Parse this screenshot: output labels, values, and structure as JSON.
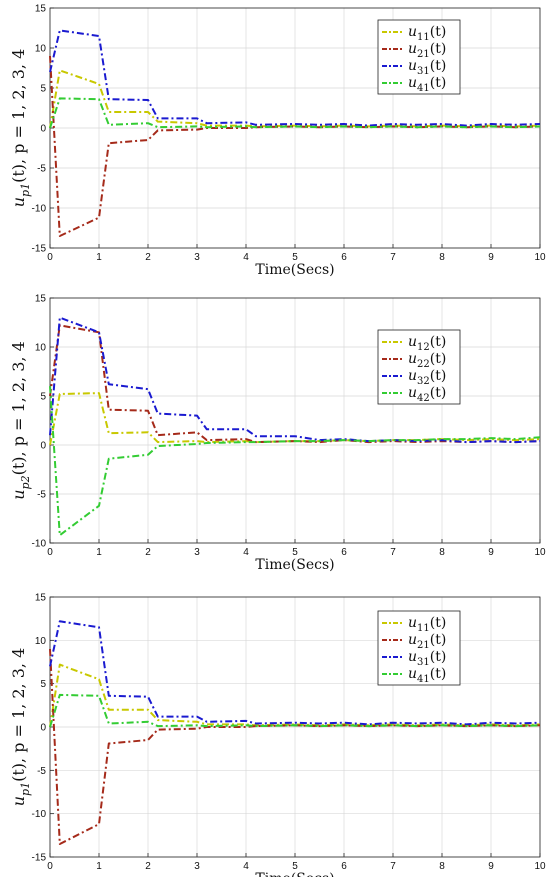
{
  "chart_data": [
    {
      "type": "line",
      "xlabel": "Time(Secs)",
      "ylabel": "u_{p1}(t), p = 1, 2, 3, 4",
      "xlim": [
        0,
        10
      ],
      "ylim": [
        -15,
        15
      ],
      "xticks": [
        "0",
        "1",
        "2",
        "3",
        "4",
        "5",
        "6",
        "7",
        "8",
        "9",
        "10"
      ],
      "yticks": [
        "-15",
        "-10",
        "-5",
        "0",
        "5",
        "10",
        "15"
      ],
      "grid": true,
      "legend_position": "top-right",
      "series": [
        {
          "name": "u11(t)",
          "label_main": "u",
          "label_sub": "11",
          "label_arg": "(t)",
          "color": "#c8c800",
          "x": [
            0,
            0.2,
            1,
            1.2,
            2,
            2.2,
            3,
            3.2,
            4,
            4.2,
            5,
            5.5,
            6,
            6.5,
            7,
            7.5,
            8,
            8.5,
            9,
            9.5,
            10
          ],
          "y": [
            0,
            7.2,
            5.5,
            2,
            2,
            0.8,
            0.6,
            0.3,
            0.3,
            0.2,
            0.3,
            0.2,
            0.3,
            0.2,
            0.3,
            0.2,
            0.3,
            0.2,
            0.3,
            0.2,
            0.3
          ]
        },
        {
          "name": "u21(t)",
          "label_main": "u",
          "label_sub": "21",
          "label_arg": "(t)",
          "color": "#a52a1a",
          "x": [
            0,
            0.2,
            1,
            1.2,
            2,
            2.2,
            3,
            3.2,
            4,
            4.2,
            5,
            5.5,
            6,
            6.5,
            7,
            7.5,
            8,
            8.5,
            9,
            9.5,
            10
          ],
          "y": [
            9,
            -13.5,
            -11.2,
            -1.9,
            -1.5,
            -0.3,
            -0.2,
            0,
            0,
            0.1,
            0.2,
            0.1,
            0.2,
            0.1,
            0.2,
            0.1,
            0.2,
            0.1,
            0.2,
            0.1,
            0.2
          ]
        },
        {
          "name": "u31(t)",
          "label_main": "u",
          "label_sub": "31",
          "label_arg": "(t)",
          "color": "#1a1ad0",
          "x": [
            0,
            0.2,
            1,
            1.2,
            2,
            2.2,
            3,
            3.2,
            4,
            4.2,
            5,
            5.5,
            6,
            6.5,
            7,
            7.5,
            8,
            8.5,
            9,
            9.5,
            10
          ],
          "y": [
            7,
            12.2,
            11.5,
            3.6,
            3.5,
            1.2,
            1.2,
            0.6,
            0.7,
            0.4,
            0.5,
            0.4,
            0.5,
            0.3,
            0.5,
            0.4,
            0.5,
            0.3,
            0.5,
            0.4,
            0.5
          ]
        },
        {
          "name": "u41(t)",
          "label_main": "u",
          "label_sub": "41",
          "label_arg": "(t)",
          "color": "#33cc33",
          "x": [
            0,
            0.2,
            1,
            1.2,
            2,
            2.2,
            3,
            3.2,
            4,
            4.2,
            5,
            5.5,
            6,
            6.5,
            7,
            7.5,
            8,
            8.5,
            9,
            9.5,
            10
          ],
          "y": [
            0,
            3.7,
            3.6,
            0.4,
            0.6,
            0.1,
            0.2,
            0.1,
            0.2,
            0.1,
            0.2,
            0.1,
            0.2,
            0.1,
            0.2,
            0.1,
            0.2,
            0.1,
            0.2,
            0.1,
            0.2
          ]
        }
      ]
    },
    {
      "type": "line",
      "xlabel": "Time(Secs)",
      "ylabel": "u_{p2}(t), p = 1, 2, 3, 4",
      "xlim": [
        0,
        10
      ],
      "ylim": [
        -10,
        15
      ],
      "xticks": [
        "0",
        "1",
        "2",
        "3",
        "4",
        "5",
        "6",
        "7",
        "8",
        "9",
        "10"
      ],
      "yticks": [
        "-10",
        "-5",
        "0",
        "5",
        "10",
        "15"
      ],
      "grid": true,
      "legend_position": "right",
      "series": [
        {
          "name": "u12(t)",
          "label_main": "u",
          "label_sub": "12",
          "label_arg": "(t)",
          "color": "#c8c800",
          "x": [
            0,
            0.2,
            1,
            1.2,
            2,
            2.2,
            3,
            3.2,
            4,
            4.2,
            5,
            5.5,
            6,
            6.5,
            7,
            7.5,
            8,
            8.5,
            9,
            9.5,
            10
          ],
          "y": [
            0,
            5.2,
            5.3,
            1.2,
            1.3,
            0.3,
            0.4,
            0.3,
            0.4,
            0.3,
            0.4,
            0.4,
            0.5,
            0.4,
            0.5,
            0.5,
            0.6,
            0.5,
            0.6,
            0.5,
            0.6
          ]
        },
        {
          "name": "u22(t)",
          "label_main": "u",
          "label_sub": "22",
          "label_arg": "(t)",
          "color": "#a52a1a",
          "x": [
            0,
            0.2,
            1,
            1.2,
            2,
            2.2,
            3,
            3.2,
            4,
            4.2,
            5,
            5.5,
            6,
            6.5,
            7,
            7.5,
            8,
            8.5,
            9,
            9.5,
            10
          ],
          "y": [
            5,
            12.2,
            11.5,
            3.6,
            3.5,
            1,
            1.3,
            0.5,
            0.6,
            0.3,
            0.4,
            0.3,
            0.5,
            0.3,
            0.4,
            0.3,
            0.4,
            0.3,
            0.4,
            0.3,
            0.4
          ]
        },
        {
          "name": "u32(t)",
          "label_main": "u",
          "label_sub": "32",
          "label_arg": "(t)",
          "color": "#1a1ad0",
          "x": [
            0,
            0.2,
            1,
            1.2,
            2,
            2.2,
            3,
            3.2,
            4,
            4.2,
            5,
            5.5,
            6,
            6.5,
            7,
            7.5,
            8,
            8.5,
            9,
            9.5,
            10
          ],
          "y": [
            1,
            13,
            11.5,
            6.2,
            5.7,
            3.2,
            3,
            1.6,
            1.6,
            0.9,
            0.9,
            0.5,
            0.6,
            0.4,
            0.5,
            0.4,
            0.5,
            0.3,
            0.4,
            0.3,
            0.4
          ]
        },
        {
          "name": "u42(t)",
          "label_main": "u",
          "label_sub": "42",
          "label_arg": "(t)",
          "color": "#33cc33",
          "x": [
            0,
            0.2,
            1,
            1.2,
            2,
            2.2,
            3,
            3.2,
            4,
            4.2,
            5,
            5.5,
            6,
            6.5,
            7,
            7.5,
            8,
            8.5,
            9,
            9.5,
            10
          ],
          "y": [
            6,
            -9.2,
            -6.2,
            -1.4,
            -1,
            -0.1,
            0.1,
            0.2,
            0.3,
            0.3,
            0.4,
            0.4,
            0.5,
            0.4,
            0.5,
            0.5,
            0.6,
            0.6,
            0.7,
            0.6,
            0.8
          ]
        }
      ]
    },
    {
      "type": "line",
      "xlabel": "Time(Secs)",
      "ylabel": "u_{p1}(t), p = 1, 2, 3, 4",
      "xlim": [
        0,
        10
      ],
      "ylim": [
        -15,
        15
      ],
      "xticks": [
        "0",
        "1",
        "2",
        "3",
        "4",
        "5",
        "6",
        "7",
        "8",
        "9",
        "10"
      ],
      "yticks": [
        "-15",
        "-10",
        "-5",
        "0",
        "5",
        "10",
        "15"
      ],
      "grid": true,
      "legend_position": "top-right",
      "series": [
        {
          "name": "u11(t)",
          "label_main": "u",
          "label_sub": "11",
          "label_arg": "(t)",
          "color": "#c8c800",
          "x": [
            0,
            0.2,
            1,
            1.2,
            2,
            2.2,
            3,
            3.2,
            4,
            4.2,
            5,
            5.5,
            6,
            6.5,
            7,
            7.5,
            8,
            8.5,
            9,
            9.5,
            10
          ],
          "y": [
            0,
            7.2,
            5.5,
            2,
            2,
            0.8,
            0.6,
            0.3,
            0.3,
            0.2,
            0.3,
            0.2,
            0.3,
            0.2,
            0.3,
            0.2,
            0.3,
            0.2,
            0.3,
            0.2,
            0.3
          ]
        },
        {
          "name": "u21(t)",
          "label_main": "u",
          "label_sub": "21",
          "label_arg": "(t)",
          "color": "#a52a1a",
          "x": [
            0,
            0.2,
            1,
            1.2,
            2,
            2.2,
            3,
            3.2,
            4,
            4.2,
            5,
            5.5,
            6,
            6.5,
            7,
            7.5,
            8,
            8.5,
            9,
            9.5,
            10
          ],
          "y": [
            9,
            -13.5,
            -11.2,
            -1.9,
            -1.5,
            -0.3,
            -0.2,
            0,
            0,
            0.1,
            0.2,
            0.1,
            0.2,
            0.1,
            0.2,
            0.1,
            0.2,
            0.1,
            0.2,
            0.1,
            0.2
          ]
        },
        {
          "name": "u31(t)",
          "label_main": "u",
          "label_sub": "31",
          "label_arg": "(t)",
          "color": "#1a1ad0",
          "x": [
            0,
            0.2,
            1,
            1.2,
            2,
            2.2,
            3,
            3.2,
            4,
            4.2,
            5,
            5.5,
            6,
            6.5,
            7,
            7.5,
            8,
            8.5,
            9,
            9.5,
            10
          ],
          "y": [
            7,
            12.2,
            11.5,
            3.6,
            3.5,
            1.2,
            1.2,
            0.6,
            0.7,
            0.4,
            0.5,
            0.4,
            0.5,
            0.3,
            0.5,
            0.4,
            0.5,
            0.3,
            0.5,
            0.4,
            0.5
          ]
        },
        {
          "name": "u41(t)",
          "label_main": "u",
          "label_sub": "41",
          "label_arg": "(t)",
          "color": "#33cc33",
          "x": [
            0,
            0.2,
            1,
            1.2,
            2,
            2.2,
            3,
            3.2,
            4,
            4.2,
            5,
            5.5,
            6,
            6.5,
            7,
            7.5,
            8,
            8.5,
            9,
            9.5,
            10
          ],
          "y": [
            0,
            3.7,
            3.6,
            0.4,
            0.6,
            0.1,
            0.2,
            0.1,
            0.2,
            0.1,
            0.2,
            0.1,
            0.2,
            0.1,
            0.2,
            0.1,
            0.2,
            0.1,
            0.2,
            0.1,
            0.2
          ]
        }
      ]
    }
  ]
}
